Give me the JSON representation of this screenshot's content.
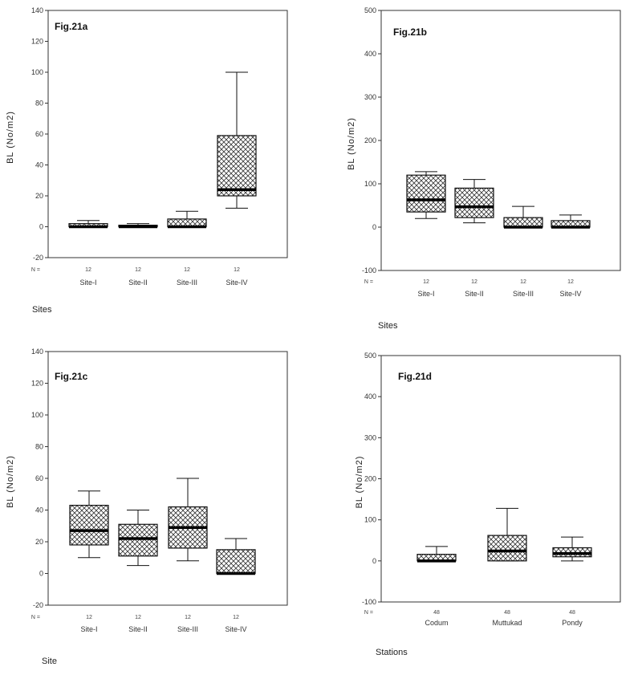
{
  "chart_data": [
    {
      "type": "box",
      "figure_label": "Fig.21a",
      "ylabel": "BL (No/m2)",
      "xlabel": "Sites",
      "n_marker": "N =",
      "ylim": [
        -20,
        140
      ],
      "yticks": [
        -20,
        0,
        20,
        40,
        60,
        80,
        100,
        120,
        140
      ],
      "categories": [
        "Site-I",
        "Site-II",
        "Site-III",
        "Site-IV"
      ],
      "n": [
        "12",
        "12",
        "12",
        "12"
      ],
      "boxes": [
        {
          "min": 0,
          "q1": 0,
          "median": 0,
          "q3": 2,
          "max": 4
        },
        {
          "min": 0,
          "q1": 0,
          "median": 0,
          "q3": 1,
          "max": 2
        },
        {
          "min": 0,
          "q1": 0,
          "median": 0,
          "q3": 5,
          "max": 10
        },
        {
          "min": 12,
          "q1": 20,
          "median": 24,
          "q3": 59,
          "max": 100
        }
      ]
    },
    {
      "type": "box",
      "figure_label": "Fig.21b",
      "ylabel": "BL (No/m2)",
      "xlabel": "Sites",
      "n_marker": "N =",
      "ylim": [
        -100,
        500
      ],
      "yticks": [
        -100,
        0,
        100,
        200,
        300,
        400,
        500
      ],
      "categories": [
        "Site-I",
        "Site-II",
        "Site-III",
        "Site-IV"
      ],
      "n": [
        "12",
        "12",
        "12",
        "12"
      ],
      "boxes": [
        {
          "min": 20,
          "q1": 35,
          "median": 63,
          "q3": 120,
          "max": 128
        },
        {
          "min": 10,
          "q1": 22,
          "median": 47,
          "q3": 90,
          "max": 110
        },
        {
          "min": 0,
          "q1": 0,
          "median": 0,
          "q3": 22,
          "max": 48
        },
        {
          "min": 0,
          "q1": 0,
          "median": 0,
          "q3": 15,
          "max": 28
        }
      ]
    },
    {
      "type": "box",
      "figure_label": "Fig.21c",
      "ylabel": "BL (No/m2)",
      "xlabel": "Site",
      "n_marker": "N =",
      "ylim": [
        -20,
        140
      ],
      "yticks": [
        -20,
        0,
        20,
        40,
        60,
        80,
        100,
        120,
        140
      ],
      "categories": [
        "Site-I",
        "Site-II",
        "Site-III",
        "Site-IV"
      ],
      "n": [
        "12",
        "12",
        "12",
        "12"
      ],
      "boxes": [
        {
          "min": 10,
          "q1": 18,
          "median": 27,
          "q3": 43,
          "max": 52
        },
        {
          "min": 5,
          "q1": 11,
          "median": 22,
          "q3": 31,
          "max": 40
        },
        {
          "min": 8,
          "q1": 16,
          "median": 29,
          "q3": 42,
          "max": 60
        },
        {
          "min": 0,
          "q1": 0,
          "median": 0,
          "q3": 15,
          "max": 22
        }
      ]
    },
    {
      "type": "box",
      "figure_label": "Fig.21d",
      "ylabel": "BL (No/m2)",
      "xlabel": "Stations",
      "n_marker": "N =",
      "ylim": [
        -100,
        500
      ],
      "yticks": [
        -100,
        0,
        100,
        200,
        300,
        400,
        500
      ],
      "categories": [
        "Codum",
        "Muttukad",
        "Pondy"
      ],
      "n": [
        "48",
        "48",
        "48"
      ],
      "boxes": [
        {
          "min": 0,
          "q1": 0,
          "median": 0,
          "q3": 16,
          "max": 35
        },
        {
          "min": 0,
          "q1": 0,
          "median": 24,
          "q3": 62,
          "max": 128
        },
        {
          "min": 0,
          "q1": 10,
          "median": 18,
          "q3": 32,
          "max": 58
        }
      ]
    }
  ]
}
